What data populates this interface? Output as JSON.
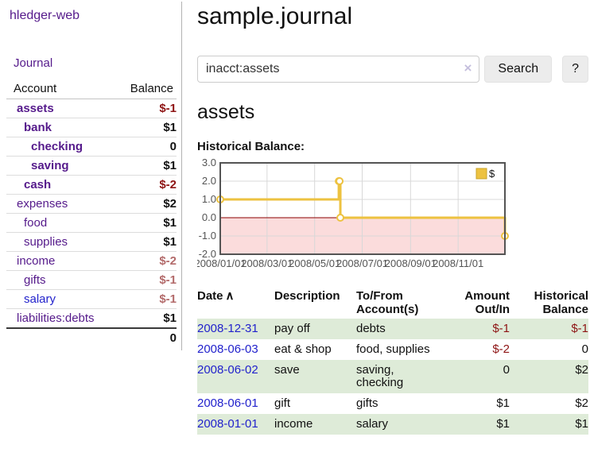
{
  "app": {
    "brand": "hledger-web",
    "nav": {
      "journal": "Journal"
    }
  },
  "page": {
    "title": "sample.journal",
    "account_heading": "assets",
    "chart_title": "Historical Balance:"
  },
  "search": {
    "value": "inacct:assets",
    "clear_icon": "×",
    "search_button": "Search",
    "help_button": "?"
  },
  "sidebar_accounts": {
    "headers": {
      "account": "Account",
      "balance": "Balance"
    },
    "rows": [
      {
        "name": "assets",
        "depth": 0,
        "balance": "$-1",
        "bold": true,
        "balance_style": "neg-strong"
      },
      {
        "name": "bank",
        "depth": 1,
        "balance": "$1",
        "bold": true,
        "balance_style": ""
      },
      {
        "name": "checking",
        "depth": 2,
        "balance": "0",
        "bold": true,
        "balance_style": ""
      },
      {
        "name": "saving",
        "depth": 2,
        "balance": "$1",
        "bold": true,
        "balance_style": ""
      },
      {
        "name": "cash",
        "depth": 1,
        "balance": "$-2",
        "bold": true,
        "balance_style": "neg-strong"
      },
      {
        "name": "expenses",
        "depth": 0,
        "balance": "$2",
        "bold": false,
        "balance_style": ""
      },
      {
        "name": "food",
        "depth": 1,
        "balance": "$1",
        "bold": false,
        "balance_style": ""
      },
      {
        "name": "supplies",
        "depth": 1,
        "balance": "$1",
        "bold": false,
        "balance_style": ""
      },
      {
        "name": "income",
        "depth": 0,
        "balance": "$-2",
        "bold": false,
        "balance_style": "neg-soft"
      },
      {
        "name": "gifts",
        "depth": 1,
        "balance": "$-1",
        "bold": false,
        "balance_style": "neg-soft"
      },
      {
        "name": "salary",
        "depth": 1,
        "balance": "$-1",
        "bold": false,
        "balance_style": "neg-soft",
        "unvisited": true
      },
      {
        "name": "liabilities:debts",
        "depth": 0,
        "balance": "$1",
        "bold": false,
        "balance_style": ""
      }
    ],
    "total": "0"
  },
  "chart_data": {
    "type": "line",
    "title": "Historical Balance:",
    "series": [
      {
        "name": "$",
        "color": "#edc240",
        "step": true,
        "points": [
          {
            "x": "2008-01-01",
            "y": 1
          },
          {
            "x": "2008-06-01",
            "y": 2
          },
          {
            "x": "2008-06-02",
            "y": 2
          },
          {
            "x": "2008-06-03",
            "y": 0
          },
          {
            "x": "2008-12-31",
            "y": -1
          }
        ]
      }
    ],
    "x_range": [
      "2008-01-01",
      "2008-12-31"
    ],
    "ylim": [
      -2,
      3
    ],
    "yticks": [
      3.0,
      2.0,
      1.0,
      0.0,
      -1.0,
      -2.0
    ],
    "xticks": [
      {
        "date": "2008-01-01",
        "label": "2008/01/01"
      },
      {
        "date": "2008-03-01",
        "label": "2008/03/01"
      },
      {
        "date": "2008-05-01",
        "label": "2008/05/01"
      },
      {
        "date": "2008-07-01",
        "label": "2008/07/01"
      },
      {
        "date": "2008-09-01",
        "label": "2008/09/01"
      },
      {
        "date": "2008-11-01",
        "label": "2008/11/01"
      }
    ],
    "grid": true,
    "legend_position": "top-right",
    "legend_label": "$",
    "negative_region_color": "#fbdcdc",
    "zero_line_color": "#8b0000",
    "border_color": "#545454",
    "gridline_color": "#d8d8d8"
  },
  "register": {
    "sort_icon": "∧",
    "headers": {
      "date": "Date",
      "description": "Description",
      "accounts": "To/From Account(s)",
      "amount": "Amount Out/In",
      "balance": "Historical Balance"
    },
    "rows": [
      {
        "date": "2008-12-31",
        "description": "pay off",
        "accounts": "debts",
        "amount": "$-1",
        "amount_neg": true,
        "balance": "$-1",
        "balance_neg": true
      },
      {
        "date": "2008-06-03",
        "description": "eat & shop",
        "accounts": "food, supplies",
        "amount": "$-2",
        "amount_neg": true,
        "balance": "0",
        "balance_neg": false
      },
      {
        "date": "2008-06-02",
        "description": "save",
        "accounts": "saving, checking",
        "amount": "0",
        "amount_neg": false,
        "balance": "$2",
        "balance_neg": false
      },
      {
        "date": "2008-06-01",
        "description": "gift",
        "accounts": "gifts",
        "amount": "$1",
        "amount_neg": false,
        "balance": "$2",
        "balance_neg": false
      },
      {
        "date": "2008-01-01",
        "description": "income",
        "accounts": "salary",
        "amount": "$1",
        "amount_neg": false,
        "balance": "$1",
        "balance_neg": false
      }
    ]
  }
}
